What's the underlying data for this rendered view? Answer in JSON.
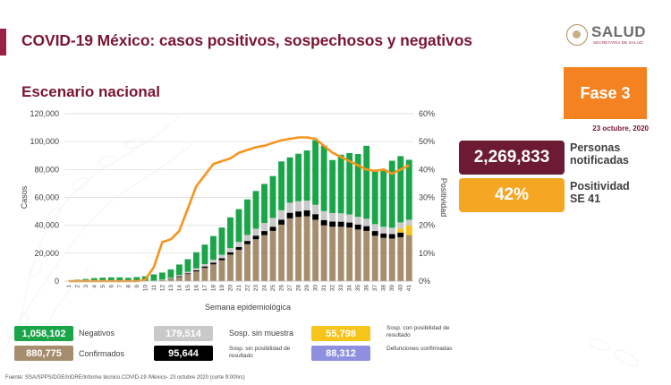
{
  "header": {
    "title": "COVID-19 México: casos positivos, sospechosos y negativos",
    "subtitle": "Escenario nacional"
  },
  "logo": {
    "name": "SALUD",
    "sub": "SECRETARÍA DE SALUD"
  },
  "phase": {
    "label": "Fase 3",
    "date": "23 octubre, 2020"
  },
  "kpis": [
    {
      "value": "2,269,833",
      "label_line1": "Personas",
      "label_line2": "notificadas",
      "color": "#6d1a33"
    },
    {
      "value": "42%",
      "label_line1": "Positividad",
      "label_line2": "SE 41",
      "color": "#f5a623"
    }
  ],
  "legend": [
    {
      "value": "1,058,102",
      "label": "Negativos",
      "color": "#1aa549"
    },
    {
      "value": "880,775",
      "label": "Confirmados",
      "color": "#a58d6d"
    },
    {
      "value": "179,514",
      "label": "Sosp. sin muestra",
      "color": "#c9c9c9"
    },
    {
      "value": "95,644",
      "label": "Sosp. sin posibilidad de resultado",
      "color": "#000000"
    },
    {
      "value": "55,798",
      "label": "Sosp. con posibilidad de resultado",
      "color": "#f7c41a"
    },
    {
      "value": "88,312",
      "label": "Defunciones confirmadas",
      "color": "#8f8fe0"
    }
  ],
  "source": "Fuente: SSA/SPPS/DGE/InDRE/Informe técnico.COVID-19 /México- 23 octubre 2020 (corte 9:00hrs)",
  "chart_data": {
    "type": "bar",
    "stacked": true,
    "xlabel": "Semana epidemiológica",
    "ylabel": "Casos",
    "y2label": "Positividad",
    "ylim": [
      0,
      120000
    ],
    "y2lim": [
      0,
      60
    ],
    "yticks": [
      "0",
      "20,000",
      "40,000",
      "60,000",
      "80,000",
      "100,000",
      "120,000"
    ],
    "y2ticks": [
      "0%",
      "10%",
      "20%",
      "30%",
      "40%",
      "50%",
      "60%"
    ],
    "categories": [
      "1",
      "2",
      "3",
      "4",
      "5",
      "6",
      "7",
      "8",
      "9",
      "10",
      "11",
      "12",
      "13",
      "14",
      "15",
      "16",
      "17",
      "18",
      "19",
      "20",
      "21",
      "22",
      "23",
      "24",
      "25",
      "26",
      "27",
      "28",
      "29",
      "30",
      "31",
      "32",
      "33",
      "34",
      "35",
      "36",
      "37",
      "38",
      "39",
      "40",
      "41"
    ],
    "series": [
      {
        "name": "Confirmados",
        "color": "#a58d6d",
        "values": [
          0,
          0,
          0,
          0,
          0,
          0,
          0,
          0,
          0,
          0,
          100,
          600,
          1500,
          3000,
          5000,
          7000,
          9500,
          12000,
          15000,
          19000,
          22500,
          26500,
          30000,
          33000,
          36000,
          40500,
          45000,
          46000,
          46500,
          44000,
          40000,
          39000,
          39000,
          38500,
          37000,
          36000,
          32500,
          31000,
          30500,
          31500,
          33000
        ]
      },
      {
        "name": "Sosp. sin posibilidad de resultado",
        "color": "#000000",
        "values": [
          0,
          0,
          0,
          0,
          0,
          0,
          0,
          0,
          0,
          0,
          50,
          150,
          300,
          500,
          600,
          800,
          1000,
          1200,
          1400,
          1700,
          2000,
          2300,
          2600,
          2900,
          3000,
          3500,
          4000,
          4000,
          4200,
          4000,
          3800,
          3700,
          3600,
          3500,
          3600,
          3400,
          3400,
          3200,
          3200,
          3300,
          0
        ]
      },
      {
        "name": "Sosp. con posibilidad de resultado",
        "color": "#f7c41a",
        "values": [
          0,
          0,
          0,
          0,
          0,
          0,
          0,
          0,
          0,
          0,
          0,
          0,
          0,
          0,
          0,
          0,
          0,
          0,
          0,
          0,
          0,
          0,
          0,
          0,
          0,
          0,
          0,
          0,
          0,
          0,
          0,
          0,
          0,
          0,
          0,
          0,
          0,
          0,
          0,
          3000,
          7000
        ]
      },
      {
        "name": "Sosp. sin muestra",
        "color": "#c9c9c9",
        "values": [
          0,
          0,
          0,
          0,
          0,
          0,
          0,
          0,
          0,
          0,
          200,
          400,
          600,
          900,
          1100,
          1400,
          1700,
          2100,
          2500,
          3000,
          3600,
          4300,
          5000,
          5800,
          6300,
          6800,
          7200,
          7300,
          7000,
          6700,
          6400,
          6100,
          6000,
          5800,
          5500,
          5300,
          5000,
          4800,
          4600,
          4300,
          4000
        ]
      },
      {
        "name": "Negativos",
        "color": "#1aa549",
        "values": [
          0,
          1000,
          1500,
          2200,
          2500,
          2700,
          2700,
          2400,
          2900,
          3500,
          4500,
          5000,
          6000,
          7500,
          9000,
          11500,
          14000,
          17000,
          19500,
          22000,
          23500,
          25500,
          27000,
          28000,
          30000,
          35000,
          32500,
          34000,
          36000,
          46300,
          47000,
          38000,
          42000,
          44000,
          45000,
          52300,
          39000,
          40000,
          48000,
          47500,
          43000
        ]
      }
    ],
    "line": {
      "name": "Positividad",
      "color": "#f7941d",
      "values": [
        0,
        0,
        0,
        0,
        0,
        0,
        0,
        0,
        0,
        0.5,
        5,
        14,
        15,
        18,
        26,
        34,
        38,
        42,
        43,
        44,
        46,
        47,
        48,
        48.5,
        49.5,
        50.5,
        51,
        51.5,
        51.5,
        51,
        48.5,
        46,
        44.5,
        43,
        41.5,
        40,
        39.5,
        40,
        38.5,
        40,
        41.5
      ]
    }
  }
}
